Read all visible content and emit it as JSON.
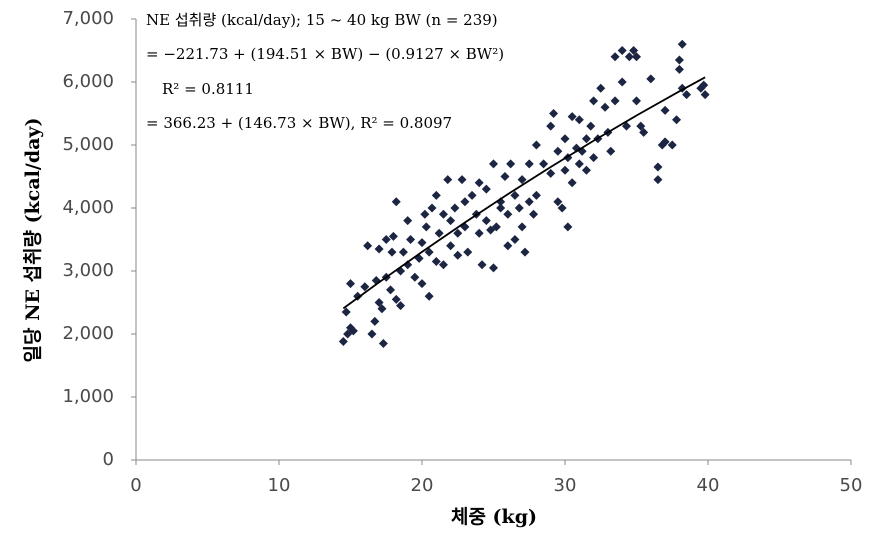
{
  "chart_data": {
    "type": "scatter",
    "x_label": "체중 (kg)",
    "y_label": "일당 NE 섭취량 (kcal/day)",
    "annotations": [
      "NE 섭취량 (kcal/day); 15 ~ 40 kg BW (n = 239)",
      "= −221.73 + (194.51 × BW) − (0.9127 × BW²)",
      "R² = 0.8111",
      "= 366.23 + (146.73 × BW), R² = 0.8097"
    ],
    "xlim": [
      0,
      50
    ],
    "xticks": [
      0,
      10,
      20,
      30,
      40,
      50
    ],
    "ylim": [
      0,
      7000
    ],
    "yticks": [
      0,
      {
        "value": 1000,
        "label": "1,000"
      },
      {
        "value": 2000,
        "label": "2,000"
      },
      {
        "value": 3000,
        "label": "3,000"
      },
      {
        "value": 4000,
        "label": "4,000"
      },
      {
        "value": 5000,
        "label": "5,000"
      },
      {
        "value": 6000,
        "label": "6,000"
      },
      {
        "value": 7000,
        "label": "7,000"
      }
    ],
    "color": "#1c2541",
    "trend_color": "#000000",
    "x": [
      14.5,
      14.7,
      14.8,
      15,
      15,
      15.2,
      15.5,
      16,
      16.2,
      16.5,
      16.7,
      16.8,
      17,
      17,
      17.2,
      17.3,
      17.5,
      17.5,
      17.8,
      17.9,
      18,
      18.2,
      18.2,
      18.5,
      18.5,
      18.7,
      19,
      19,
      19.2,
      19.5,
      19.8,
      20,
      20,
      20.2,
      20.3,
      20.5,
      20.5,
      20.7,
      21,
      21,
      21.2,
      21.5,
      21.5,
      21.8,
      22,
      22,
      22.3,
      22.5,
      22.5,
      22.8,
      23,
      23,
      23.2,
      23.5,
      23.8,
      24,
      24,
      24.2,
      24.5,
      24.5,
      24.8,
      25,
      25,
      25.2,
      25.5,
      25.5,
      25.8,
      26,
      26,
      26.2,
      26.5,
      26.5,
      26.8,
      27,
      27,
      27.2,
      27.5,
      27.5,
      27.8,
      28,
      28,
      28.5,
      29,
      29,
      29.2,
      29.5,
      29.5,
      29.8,
      30,
      30,
      30.2,
      30.2,
      30.5,
      30.5,
      30.8,
      31,
      31,
      31.2,
      31.5,
      31.5,
      31.8,
      32,
      32,
      32.3,
      32.5,
      32.8,
      33,
      33.2,
      33.5,
      33.5,
      34,
      34,
      34.3,
      34.5,
      34.8,
      35,
      35,
      35.3,
      35.5,
      36,
      36.5,
      36.5,
      36.8,
      37,
      37,
      37.5,
      37.8,
      38,
      38,
      38.2,
      38.2,
      38.5,
      39.5,
      39.7,
      39.8
    ],
    "values": [
      1880,
      2350,
      2000,
      2100,
      2800,
      2050,
      2600,
      2750,
      3400,
      2000,
      2200,
      2850,
      3350,
      2500,
      2400,
      1850,
      3500,
      2900,
      2700,
      3300,
      3550,
      2550,
      4100,
      3000,
      2450,
      3300,
      3800,
      3100,
      3500,
      2900,
      3200,
      3450,
      2800,
      3900,
      3700,
      2600,
      3300,
      4000,
      3150,
      4200,
      3600,
      3100,
      3900,
      4450,
      3800,
      3400,
      4000,
      3600,
      3250,
      4450,
      3700,
      4100,
      3300,
      4200,
      3900,
      4400,
      3600,
      3100,
      4300,
      3800,
      3650,
      4700,
      3050,
      3700,
      4100,
      4000,
      4500,
      3400,
      3900,
      4700,
      4200,
      3500,
      4000,
      4450,
      3700,
      3300,
      4100,
      4700,
      3900,
      4200,
      5000,
      4700,
      4550,
      5300,
      5500,
      4100,
      4900,
      4000,
      5100,
      4600,
      4800,
      3700,
      5450,
      4400,
      4950,
      4700,
      5400,
      4900,
      4600,
      5100,
      5300,
      4800,
      5700,
      5100,
      5900,
      5600,
      5200,
      4900,
      6400,
      5700,
      6000,
      6500,
      5300,
      6400,
      6500,
      5700,
      6400,
      5300,
      5200,
      6050,
      4450,
      4650,
      5000,
      5050,
      5550,
      5000,
      5400,
      6200,
      6350,
      6600,
      5900,
      5800,
      5900,
      5950,
      5800
    ],
    "trendline": {
      "x": [
        14.5,
        17,
        20,
        23,
        26,
        29,
        32,
        35,
        38,
        39.8
      ],
      "values": [
        2407,
        2821,
        3303,
        3769,
        4219,
        4651,
        5068,
        5468,
        5852,
        6074
      ]
    }
  }
}
